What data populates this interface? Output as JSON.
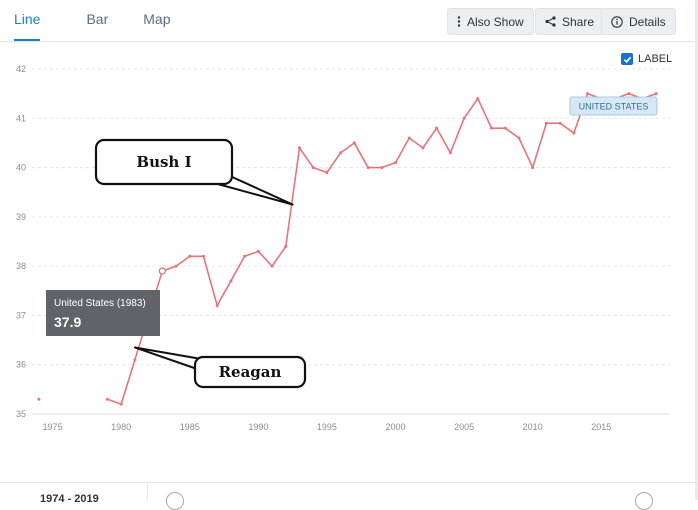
{
  "tabs": [
    {
      "label": "Line",
      "active": true
    },
    {
      "label": "Bar",
      "active": false
    },
    {
      "label": "Map",
      "active": false
    }
  ],
  "toolbar": {
    "also_show_label": "Also Show",
    "share_label": "Share",
    "details_label": "Details"
  },
  "label_toggle": {
    "label": "LABEL",
    "checked": true
  },
  "footer": {
    "range_label": "1974 - 2019"
  },
  "colors": {
    "accent": "#1a80c8",
    "line": "#e8737a",
    "tag_bg": "#d6e8f5",
    "tooltip_bg": "#606468"
  },
  "chart_data": {
    "type": "line",
    "xlim": [
      1973.5,
      2019.5
    ],
    "ylim": [
      35,
      42
    ],
    "x_ticks": [
      1975,
      1980,
      1985,
      1990,
      1995,
      2000,
      2005,
      2010,
      2015
    ],
    "y_ticks": [
      35,
      36,
      37,
      38,
      39,
      40,
      41,
      42
    ],
    "grid": true,
    "series": [
      {
        "name": "UNITED STATES",
        "segments": [
          [
            [
              1974,
              35.3
            ]
          ],
          [
            [
              1979,
              35.3
            ],
            [
              1980,
              35.2
            ],
            [
              1981,
              36.1
            ],
            [
              1982,
              37.0
            ],
            [
              1983,
              37.9
            ],
            [
              1984,
              38.0
            ],
            [
              1985,
              38.2
            ],
            [
              1986,
              38.2
            ],
            [
              1987,
              37.2
            ],
            [
              1988,
              37.7
            ],
            [
              1989,
              38.2
            ],
            [
              1990,
              38.3
            ],
            [
              1991,
              38.0
            ],
            [
              1992,
              38.4
            ],
            [
              1993,
              40.4
            ],
            [
              1994,
              40.0
            ],
            [
              1995,
              39.9
            ],
            [
              1996,
              40.3
            ],
            [
              1997,
              40.5
            ],
            [
              1998,
              40.0
            ],
            [
              1999,
              40.0
            ],
            [
              2000,
              40.1
            ],
            [
              2001,
              40.6
            ],
            [
              2002,
              40.4
            ],
            [
              2003,
              40.8
            ],
            [
              2004,
              40.3
            ],
            [
              2005,
              41.0
            ],
            [
              2006,
              41.4
            ],
            [
              2007,
              40.8
            ],
            [
              2008,
              40.8
            ],
            [
              2009,
              40.6
            ],
            [
              2010,
              40.0
            ],
            [
              2011,
              40.9
            ],
            [
              2012,
              40.9
            ],
            [
              2013,
              40.7
            ],
            [
              2014,
              41.5
            ],
            [
              2015,
              41.4
            ],
            [
              2016,
              41.4
            ],
            [
              2017,
              41.5
            ],
            [
              2018,
              41.4
            ],
            [
              2019,
              41.5
            ]
          ]
        ]
      }
    ],
    "series_tag": "UNITED STATES",
    "tooltip": {
      "title": "United States (1983)",
      "value": "37.9",
      "x": 1983,
      "y": 37.9
    },
    "annotations": [
      {
        "text": "Bush I",
        "target_x": 1992.5,
        "target_y": 39.25
      },
      {
        "text": "Reagan",
        "target_x": 1981,
        "target_y": 36.35
      }
    ]
  }
}
